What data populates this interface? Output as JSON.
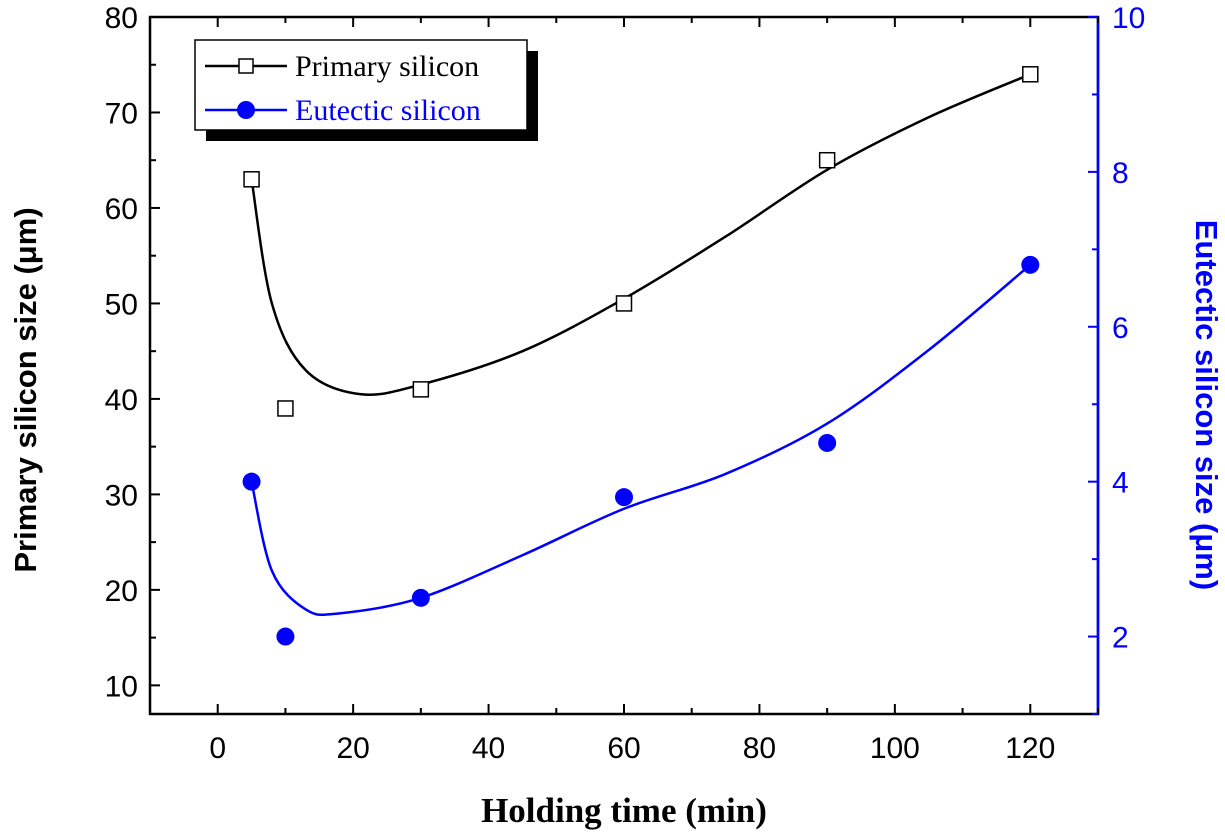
{
  "chart_data": {
    "type": "line",
    "xlabel": "Holding time (min)",
    "ylabel": "Primary silicon size (μm)",
    "y2label": "Eutectic silicon size (μm)",
    "xlim": [
      -10,
      130
    ],
    "ylim": [
      7,
      80
    ],
    "y2lim": [
      1,
      10
    ],
    "xticks": [
      0,
      20,
      40,
      60,
      80,
      100,
      120
    ],
    "yticks": [
      10,
      20,
      30,
      40,
      50,
      60,
      70,
      80
    ],
    "y2ticks": [
      2,
      4,
      6,
      8,
      10
    ],
    "legend_position": "top-left",
    "series": [
      {
        "name": "Primary silicon",
        "axis": "left",
        "marker": "open-square",
        "color": "#000000",
        "x": [
          5,
          10,
          30,
          60,
          90,
          120
        ],
        "values": [
          63,
          39,
          41,
          50,
          65,
          74
        ]
      },
      {
        "name": "Eutectic silicon",
        "axis": "right",
        "marker": "filled-circle",
        "color": "#0000ff",
        "x": [
          5,
          10,
          30,
          60,
          90,
          120
        ],
        "values": [
          4.0,
          2.0,
          2.5,
          3.8,
          4.5,
          6.8
        ]
      }
    ]
  }
}
